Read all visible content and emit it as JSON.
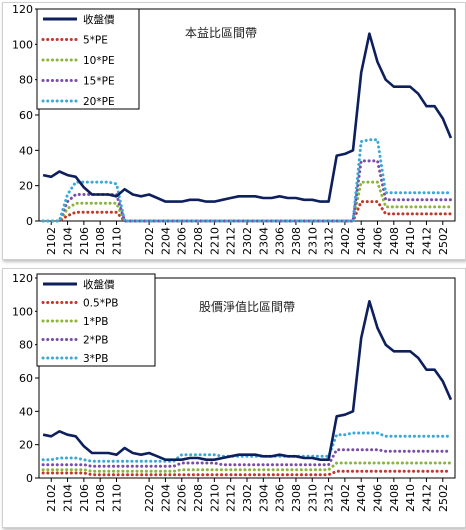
{
  "chart_data": [
    {
      "type": "line",
      "title": "本益比區間帶",
      "xlabel": "",
      "ylabel": "",
      "ylim": [
        0,
        120
      ],
      "yticks": [
        0,
        20,
        40,
        60,
        80,
        100,
        120
      ],
      "xticks": [
        "2102",
        "2104",
        "2106",
        "2108",
        "2110",
        "2202",
        "2204",
        "2206",
        "2208",
        "2210",
        "2212",
        "2302",
        "2304",
        "2306",
        "2308",
        "2310",
        "2312",
        "2402",
        "2404",
        "2406",
        "2408",
        "2410",
        "2412",
        "2502"
      ],
      "legend_position": "top-left",
      "grid": false,
      "x": [
        "2101",
        "2102",
        "2103",
        "2104",
        "2105",
        "2106",
        "2107",
        "2108",
        "2109",
        "2110",
        "2111",
        "2112",
        "2201",
        "2202",
        "2203",
        "2204",
        "2205",
        "2206",
        "2207",
        "2208",
        "2209",
        "2210",
        "2211",
        "2212",
        "2301",
        "2302",
        "2303",
        "2304",
        "2305",
        "2306",
        "2307",
        "2308",
        "2309",
        "2310",
        "2311",
        "2312",
        "2401",
        "2402",
        "2403",
        "2404",
        "2405",
        "2406",
        "2407",
        "2408",
        "2409",
        "2410",
        "2411",
        "2412",
        "2501",
        "2502",
        "2503"
      ],
      "series": [
        {
          "name": "收盤價",
          "color": "#0d1f5c",
          "style": "solid",
          "values": [
            26,
            25,
            28,
            26,
            25,
            19,
            15,
            15,
            15,
            14,
            18,
            15,
            14,
            15,
            13,
            11,
            11,
            11,
            12,
            12,
            11,
            11,
            12,
            13,
            14,
            14,
            14,
            13,
            13,
            14,
            13,
            13,
            12,
            12,
            11,
            11,
            37,
            38,
            40,
            84,
            106,
            90,
            80,
            76,
            76,
            76,
            72,
            65,
            65,
            58,
            47
          ]
        },
        {
          "name": "5*PE",
          "color": "#c0392b",
          "style": "dotted",
          "values": [
            0,
            0,
            0,
            3,
            5,
            5,
            5,
            5,
            5,
            5,
            0,
            0,
            0,
            0,
            0,
            0,
            0,
            0,
            0,
            0,
            0,
            0,
            0,
            0,
            0,
            0,
            0,
            0,
            0,
            0,
            0,
            0,
            0,
            0,
            0,
            0,
            0,
            0,
            0,
            11,
            11,
            11,
            4,
            4,
            4,
            4,
            4,
            4,
            4,
            4,
            4
          ]
        },
        {
          "name": "10*PE",
          "color": "#8cb43a",
          "style": "dotted",
          "values": [
            0,
            0,
            0,
            7,
            10,
            10,
            10,
            10,
            10,
            10,
            0,
            0,
            0,
            0,
            0,
            0,
            0,
            0,
            0,
            0,
            0,
            0,
            0,
            0,
            0,
            0,
            0,
            0,
            0,
            0,
            0,
            0,
            0,
            0,
            0,
            0,
            0,
            0,
            0,
            22,
            22,
            22,
            8,
            8,
            8,
            8,
            8,
            8,
            8,
            8,
            8
          ]
        },
        {
          "name": "15*PE",
          "color": "#7a4ea8",
          "style": "dotted",
          "values": [
            0,
            0,
            0,
            11,
            15,
            15,
            15,
            15,
            15,
            15,
            0,
            0,
            0,
            0,
            0,
            0,
            0,
            0,
            0,
            0,
            0,
            0,
            0,
            0,
            0,
            0,
            0,
            0,
            0,
            0,
            0,
            0,
            0,
            0,
            0,
            0,
            0,
            0,
            0,
            34,
            34,
            34,
            12,
            12,
            12,
            12,
            12,
            12,
            12,
            12,
            12
          ]
        },
        {
          "name": "20*PE",
          "color": "#3ba8d6",
          "style": "dotted",
          "values": [
            0,
            0,
            0,
            15,
            22,
            22,
            22,
            22,
            22,
            21,
            0,
            0,
            0,
            0,
            0,
            0,
            0,
            0,
            0,
            0,
            0,
            0,
            0,
            0,
            0,
            0,
            0,
            0,
            0,
            0,
            0,
            0,
            0,
            0,
            0,
            0,
            0,
            0,
            0,
            45,
            46,
            46,
            16,
            16,
            16,
            16,
            16,
            16,
            16,
            16,
            16
          ]
        }
      ]
    },
    {
      "type": "line",
      "title": "股價淨值比區間帶",
      "xlabel": "",
      "ylabel": "",
      "ylim": [
        0,
        120
      ],
      "yticks": [
        0,
        20,
        40,
        60,
        80,
        100,
        120
      ],
      "xticks": [
        "2102",
        "2104",
        "2106",
        "2108",
        "2110",
        "2202",
        "2204",
        "2206",
        "2208",
        "2210",
        "2212",
        "2302",
        "2304",
        "2306",
        "2308",
        "2310",
        "2312",
        "2402",
        "2404",
        "2406",
        "2408",
        "2410",
        "2412",
        "2502"
      ],
      "legend_position": "top-left",
      "grid": false,
      "x": [
        "2101",
        "2102",
        "2103",
        "2104",
        "2105",
        "2106",
        "2107",
        "2108",
        "2109",
        "2110",
        "2111",
        "2112",
        "2201",
        "2202",
        "2203",
        "2204",
        "2205",
        "2206",
        "2207",
        "2208",
        "2209",
        "2210",
        "2211",
        "2212",
        "2301",
        "2302",
        "2303",
        "2304",
        "2305",
        "2306",
        "2307",
        "2308",
        "2309",
        "2310",
        "2311",
        "2312",
        "2401",
        "2402",
        "2403",
        "2404",
        "2405",
        "2406",
        "2407",
        "2408",
        "2409",
        "2410",
        "2411",
        "2412",
        "2501",
        "2502",
        "2503"
      ],
      "series": [
        {
          "name": "收盤價",
          "color": "#0d1f5c",
          "style": "solid",
          "values": [
            26,
            25,
            28,
            26,
            25,
            19,
            15,
            15,
            15,
            14,
            18,
            15,
            14,
            15,
            13,
            11,
            11,
            11,
            12,
            12,
            11,
            11,
            12,
            13,
            14,
            14,
            14,
            13,
            13,
            14,
            13,
            13,
            12,
            12,
            11,
            11,
            37,
            38,
            40,
            84,
            106,
            90,
            80,
            76,
            76,
            76,
            72,
            65,
            65,
            58,
            47
          ]
        },
        {
          "name": "0.5*PB",
          "color": "#c0392b",
          "style": "dotted",
          "values": [
            3,
            3,
            3,
            3,
            3,
            3,
            2,
            2,
            2,
            2,
            2,
            2,
            2,
            2,
            2,
            2,
            2,
            2,
            2,
            2,
            2,
            2,
            2,
            2,
            2,
            2,
            2,
            2,
            2,
            2,
            2,
            2,
            2,
            2,
            2,
            2,
            4,
            4,
            4,
            4,
            4,
            4,
            4,
            4,
            4,
            4,
            4,
            4,
            4,
            4,
            4
          ]
        },
        {
          "name": "1*PB",
          "color": "#8cb43a",
          "style": "dotted",
          "values": [
            5,
            5,
            5,
            5,
            5,
            5,
            4,
            4,
            4,
            4,
            4,
            4,
            4,
            4,
            4,
            4,
            4,
            5,
            5,
            5,
            5,
            5,
            5,
            5,
            5,
            5,
            5,
            5,
            5,
            5,
            5,
            5,
            5,
            5,
            5,
            5,
            9,
            9,
            9,
            9,
            9,
            9,
            9,
            9,
            9,
            9,
            9,
            9,
            9,
            9,
            9
          ]
        },
        {
          "name": "2*PB",
          "color": "#7a4ea8",
          "style": "dotted",
          "values": [
            8,
            8,
            8,
            8,
            8,
            8,
            7,
            7,
            7,
            7,
            7,
            7,
            7,
            7,
            7,
            7,
            7,
            9,
            9,
            9,
            9,
            9,
            8,
            8,
            8,
            8,
            8,
            8,
            8,
            8,
            8,
            8,
            8,
            8,
            8,
            8,
            17,
            17,
            17,
            17,
            17,
            17,
            16,
            16,
            16,
            16,
            16,
            16,
            16,
            16,
            16
          ]
        },
        {
          "name": "3*PB",
          "color": "#3ba8d6",
          "style": "dotted",
          "values": [
            11,
            11,
            12,
            12,
            12,
            11,
            10,
            10,
            10,
            10,
            10,
            10,
            10,
            10,
            10,
            10,
            10,
            14,
            14,
            14,
            14,
            14,
            13,
            13,
            13,
            13,
            13,
            13,
            13,
            13,
            13,
            13,
            13,
            13,
            13,
            13,
            26,
            26,
            27,
            27,
            27,
            27,
            25,
            25,
            25,
            25,
            25,
            25,
            25,
            25,
            25
          ]
        }
      ]
    }
  ]
}
